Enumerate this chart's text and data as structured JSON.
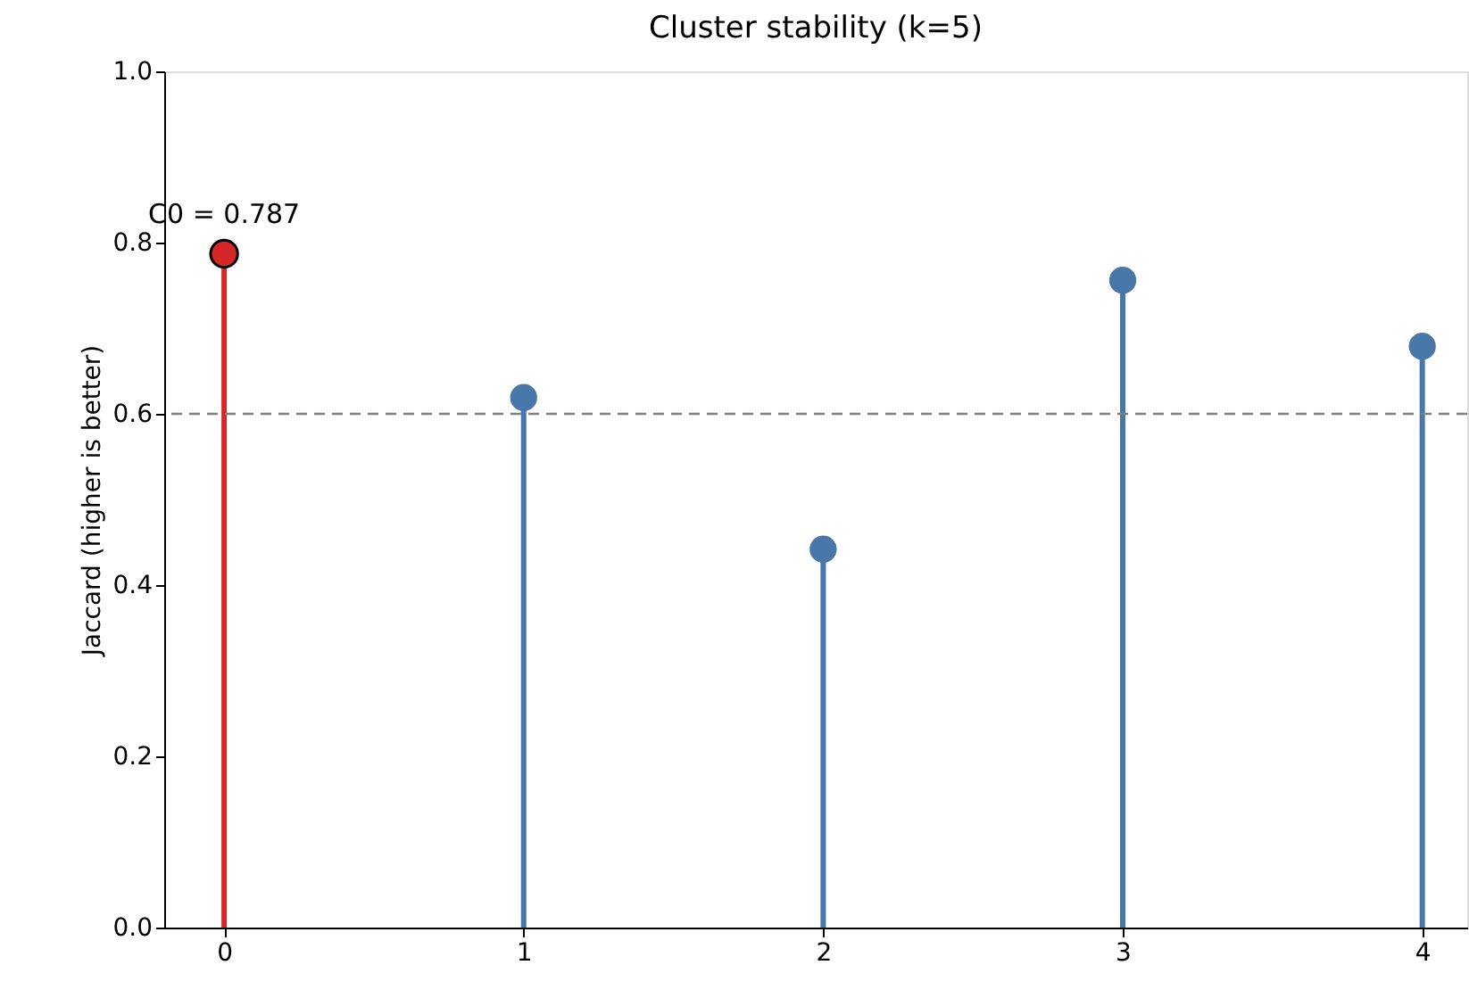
{
  "chart_data": {
    "type": "lollipop",
    "title": "Cluster stability (k=5)",
    "ylabel": "Jaccard (higher is better)",
    "x": [
      0,
      1,
      2,
      3,
      4
    ],
    "values": [
      0.787,
      0.619,
      0.442,
      0.756,
      0.679
    ],
    "colors": [
      "#d62728",
      "#4a77aa",
      "#4a77aa",
      "#4a77aa",
      "#4a77aa"
    ],
    "xlim": [
      -0.2,
      4.15
    ],
    "xticks": [
      0,
      1,
      2,
      3,
      4
    ],
    "ylim": [
      0,
      1
    ],
    "yticks": [
      {
        "value": 0,
        "label": "0.0"
      },
      0.2,
      0.4,
      0.6,
      0.8,
      {
        "value": 1,
        "label": "1.0"
      }
    ],
    "ref_lines": [
      {
        "axis": "y",
        "value": 0.6,
        "color": "#808080",
        "line_style": "dashed"
      }
    ],
    "annotations": [
      {
        "text": "C0 = 0.787",
        "x": 0,
        "y": 0.787
      }
    ],
    "grid": false,
    "marker": "circle"
  }
}
